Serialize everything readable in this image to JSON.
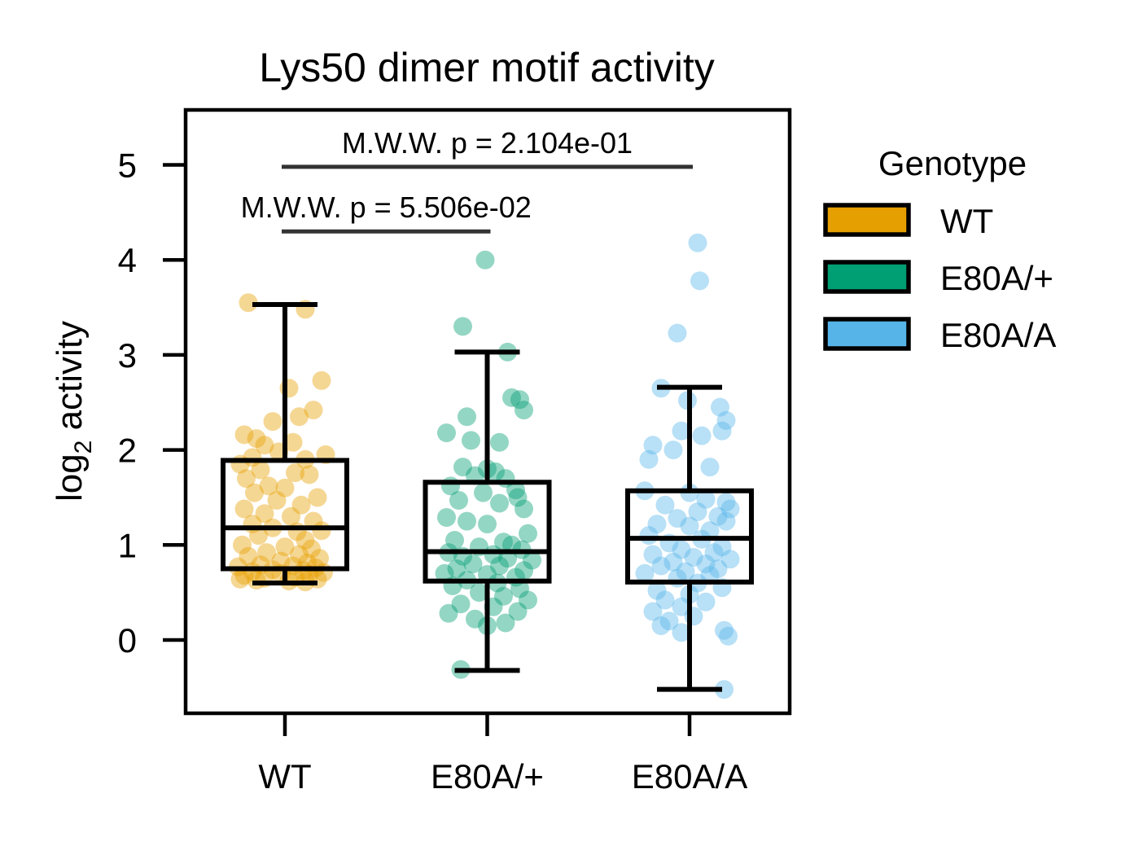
{
  "chart_data": {
    "type": "box",
    "title": "Lys50 dimer motif activity",
    "xlabel": "",
    "ylabel": "log",
    "ylabel_subscript": "2",
    "ylabel_suffix": " activity",
    "ylim": [
      -0.75,
      5.55
    ],
    "yticks": [
      0,
      1,
      2,
      3,
      4,
      5
    ],
    "categories": [
      "WT",
      "E80A/+",
      "E80A/A"
    ],
    "grid": false,
    "legend": {
      "title": "Genotype",
      "placement": "outside-right",
      "entries": [
        "WT",
        "E80A/+",
        "E80A/A"
      ]
    },
    "colors": [
      "#E69F00",
      "#009E73",
      "#56B4E9"
    ],
    "boxes": [
      {
        "name": "WT",
        "whisker_low": 0.6,
        "q1": 0.75,
        "median": 1.18,
        "q3": 1.89,
        "whisker_high": 3.53
      },
      {
        "name": "E80A/+",
        "whisker_low": -0.32,
        "q1": 0.62,
        "median": 0.93,
        "q3": 1.66,
        "whisker_high": 3.03
      },
      {
        "name": "E80A/A",
        "whisker_low": -0.52,
        "q1": 0.61,
        "median": 1.07,
        "q3": 1.57,
        "whisker_high": 2.66
      }
    ],
    "points": [
      {
        "name": "WT",
        "values": [
          [
            -0.18,
            3.55
          ],
          [
            0.1,
            3.48
          ],
          [
            0.02,
            2.65
          ],
          [
            0.18,
            2.73
          ],
          [
            0.14,
            2.42
          ],
          [
            -0.06,
            2.3
          ],
          [
            0.07,
            2.35
          ],
          [
            -0.2,
            2.16
          ],
          [
            -0.14,
            2.12
          ],
          [
            -0.1,
            2.05
          ],
          [
            0.04,
            2.08
          ],
          [
            0.2,
            1.95
          ],
          [
            -0.16,
            1.92
          ],
          [
            -0.03,
            1.98
          ],
          [
            0.1,
            1.9
          ],
          [
            -0.22,
            1.85
          ],
          [
            -0.12,
            1.79
          ],
          [
            0.05,
            1.76
          ],
          [
            -0.19,
            1.7
          ],
          [
            0.12,
            1.74
          ],
          [
            -0.08,
            1.62
          ],
          [
            0.0,
            1.6
          ],
          [
            -0.15,
            1.55
          ],
          [
            0.16,
            1.5
          ],
          [
            -0.04,
            1.47
          ],
          [
            0.08,
            1.42
          ],
          [
            -0.2,
            1.38
          ],
          [
            -0.1,
            1.33
          ],
          [
            0.03,
            1.3
          ],
          [
            0.14,
            1.25
          ],
          [
            -0.16,
            1.22
          ],
          [
            -0.06,
            1.18
          ],
          [
            0.06,
            1.14
          ],
          [
            0.18,
            1.15
          ],
          [
            -0.13,
            1.1
          ],
          [
            0.1,
            1.05
          ],
          [
            -0.21,
            1.0
          ],
          [
            0.0,
            0.98
          ],
          [
            0.13,
            0.96
          ],
          [
            -0.09,
            0.92
          ],
          [
            0.07,
            0.9
          ],
          [
            -0.18,
            0.88
          ],
          [
            0.17,
            0.86
          ],
          [
            -0.02,
            0.83
          ],
          [
            0.11,
            0.81
          ],
          [
            -0.12,
            0.79
          ],
          [
            0.04,
            0.78
          ],
          [
            -0.23,
            0.77
          ],
          [
            0.15,
            0.76
          ],
          [
            -0.06,
            0.74
          ],
          [
            0.09,
            0.73
          ],
          [
            -0.16,
            0.72
          ],
          [
            0.19,
            0.71
          ],
          [
            -0.02,
            0.7
          ],
          [
            0.12,
            0.69
          ],
          [
            -0.2,
            0.68
          ],
          [
            0.05,
            0.66
          ],
          [
            -0.1,
            0.65
          ],
          [
            0.16,
            0.64
          ],
          [
            -0.14,
            0.63
          ],
          [
            0.02,
            0.62
          ],
          [
            0.1,
            0.61
          ],
          [
            -0.22,
            0.64
          ]
        ]
      },
      {
        "name": "E80A/+",
        "values": [
          [
            -0.01,
            4.0
          ],
          [
            -0.12,
            3.3
          ],
          [
            0.1,
            3.03
          ],
          [
            0.12,
            2.55
          ],
          [
            0.16,
            2.53
          ],
          [
            0.18,
            2.42
          ],
          [
            -0.1,
            2.35
          ],
          [
            -0.2,
            2.18
          ],
          [
            -0.08,
            2.1
          ],
          [
            0.06,
            2.08
          ],
          [
            -0.12,
            1.82
          ],
          [
            0.0,
            1.8
          ],
          [
            0.04,
            1.77
          ],
          [
            -0.06,
            1.73
          ],
          [
            0.09,
            1.7
          ],
          [
            -0.18,
            1.62
          ],
          [
            0.14,
            1.58
          ],
          [
            -0.02,
            1.55
          ],
          [
            0.15,
            1.5
          ],
          [
            -0.14,
            1.47
          ],
          [
            0.06,
            1.44
          ],
          [
            0.18,
            1.38
          ],
          [
            -0.2,
            1.29
          ],
          [
            -0.1,
            1.25
          ],
          [
            0.0,
            1.22
          ],
          [
            0.2,
            1.12
          ],
          [
            -0.16,
            1.05
          ],
          [
            0.08,
            1.03
          ],
          [
            0.12,
            1.0
          ],
          [
            -0.04,
            0.98
          ],
          [
            0.17,
            0.95
          ],
          [
            -0.19,
            0.92
          ],
          [
            0.03,
            0.9
          ],
          [
            -0.12,
            0.88
          ],
          [
            0.1,
            0.86
          ],
          [
            0.22,
            0.84
          ],
          [
            -0.07,
            0.8
          ],
          [
            0.06,
            0.78
          ],
          [
            -0.15,
            0.75
          ],
          [
            0.18,
            0.73
          ],
          [
            -0.21,
            0.7
          ],
          [
            0.0,
            0.69
          ],
          [
            0.14,
            0.66
          ],
          [
            -0.1,
            0.63
          ],
          [
            0.05,
            0.6
          ],
          [
            -0.17,
            0.57
          ],
          [
            0.16,
            0.54
          ],
          [
            -0.04,
            0.5
          ],
          [
            0.08,
            0.46
          ],
          [
            0.2,
            0.42
          ],
          [
            -0.13,
            0.38
          ],
          [
            0.03,
            0.35
          ],
          [
            0.15,
            0.3
          ],
          [
            -0.19,
            0.28
          ],
          [
            -0.06,
            0.22
          ],
          [
            0.09,
            0.18
          ],
          [
            0.0,
            0.15
          ],
          [
            -0.13,
            -0.31
          ]
        ]
      },
      {
        "name": "E80A/A",
        "values": [
          [
            0.04,
            4.18
          ],
          [
            0.05,
            3.78
          ],
          [
            -0.06,
            3.23
          ],
          [
            -0.14,
            2.65
          ],
          [
            -0.01,
            2.52
          ],
          [
            0.15,
            2.45
          ],
          [
            0.18,
            2.31
          ],
          [
            0.16,
            2.2
          ],
          [
            -0.04,
            2.2
          ],
          [
            0.06,
            2.15
          ],
          [
            -0.18,
            2.05
          ],
          [
            -0.08,
            2.0
          ],
          [
            -0.2,
            1.9
          ],
          [
            0.1,
            1.82
          ],
          [
            0.0,
            1.55
          ],
          [
            0.18,
            1.45
          ],
          [
            -0.22,
            1.57
          ],
          [
            0.08,
            1.48
          ],
          [
            -0.12,
            1.42
          ],
          [
            0.2,
            1.38
          ],
          [
            0.04,
            1.35
          ],
          [
            0.14,
            1.3
          ],
          [
            -0.06,
            1.28
          ],
          [
            0.18,
            1.25
          ],
          [
            -0.16,
            1.22
          ],
          [
            0.0,
            1.2
          ],
          [
            0.1,
            1.15
          ],
          [
            -0.2,
            1.1
          ],
          [
            0.06,
            1.06
          ],
          [
            -0.1,
            1.02
          ],
          [
            0.16,
            0.98
          ],
          [
            -0.04,
            0.95
          ],
          [
            0.12,
            0.92
          ],
          [
            -0.18,
            0.9
          ],
          [
            0.02,
            0.87
          ],
          [
            0.2,
            0.85
          ],
          [
            -0.08,
            0.82
          ],
          [
            0.08,
            0.8
          ],
          [
            -0.14,
            0.78
          ],
          [
            0.14,
            0.75
          ],
          [
            -0.02,
            0.72
          ],
          [
            -0.22,
            0.7
          ],
          [
            0.1,
            0.68
          ],
          [
            -0.06,
            0.65
          ],
          [
            0.04,
            0.6
          ],
          [
            0.16,
            0.55
          ],
          [
            -0.16,
            0.52
          ],
          [
            0.0,
            0.48
          ],
          [
            -0.12,
            0.42
          ],
          [
            0.08,
            0.4
          ],
          [
            -0.04,
            0.35
          ],
          [
            -0.18,
            0.3
          ],
          [
            0.02,
            0.25
          ],
          [
            -0.1,
            0.2
          ],
          [
            -0.14,
            0.15
          ],
          [
            0.17,
            0.1
          ],
          [
            -0.04,
            0.08
          ],
          [
            0.19,
            0.04
          ],
          [
            0.17,
            -0.52
          ]
        ]
      }
    ],
    "annotations": [
      {
        "text": "M.W.W. p = 5.506e-02",
        "from": 0,
        "to": 1,
        "y": 4.3
      },
      {
        "text": "M.W.W. p = 2.104e-01",
        "from": 0,
        "to": 2,
        "y": 4.98
      }
    ]
  }
}
